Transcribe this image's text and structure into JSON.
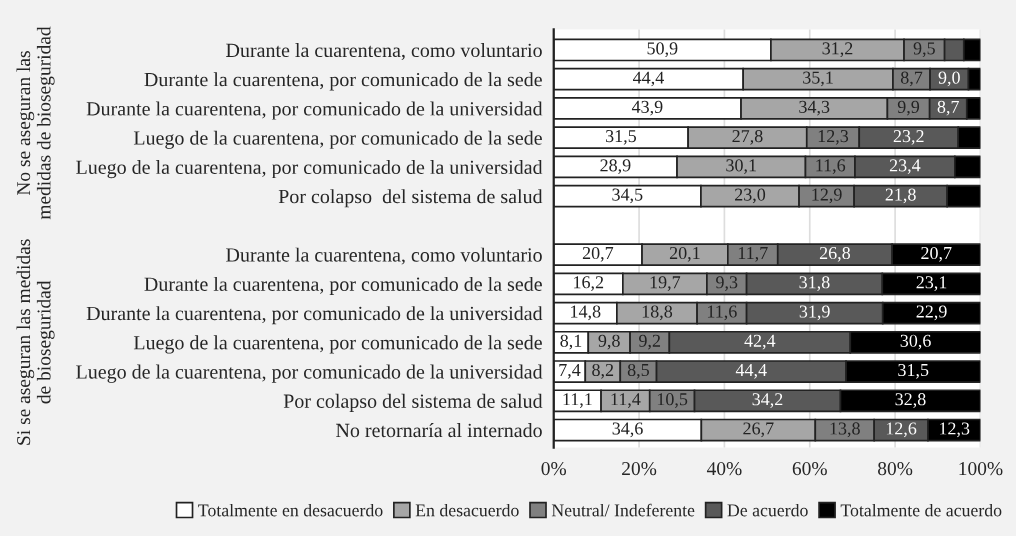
{
  "chart_data": {
    "type": "bar",
    "orientation": "horizontal",
    "stacked": true,
    "categories": [
      "Durante la cuarentena, como voluntario",
      "Durante la cuarentena, por comunicado de la sede",
      "Durante la cuarentena, por comunicado de la universidad",
      "Luego de la cuarentena, por comunicado de la sede",
      "Luego de la cuarentena, por comunicado de la universidad",
      "Por colapso  del sistema de salud",
      null,
      "Durante la cuarentena, como voluntario",
      "Durante la cuarentena, por comunicado de la sede",
      "Durante la cuarentena, por comunicado de la universidad",
      "Luego de la cuarentena, por comunicado de la sede",
      "Luego de la cuarentena, por comunicado de la universidad",
      "Por colapso del sistema de salud",
      "No retornaría al internado"
    ],
    "series": [
      {
        "name": "Totalmente en desacuerdo",
        "color": "#ffffff",
        "values": [
          50.9,
          44.4,
          43.9,
          31.5,
          28.9,
          34.5,
          null,
          20.7,
          16.2,
          14.8,
          8.1,
          7.4,
          11.1,
          34.6
        ],
        "value_labels": [
          "50,9",
          "44,4",
          "43,9",
          "31,5",
          "28,9",
          "34,5",
          null,
          "20,7",
          "16,2",
          "14,8",
          "8,1",
          "7,4",
          "11,1",
          "34,6"
        ]
      },
      {
        "name": "En desacuerdo",
        "color": "#a6a6a6",
        "values": [
          31.2,
          35.1,
          34.3,
          27.8,
          30.1,
          23.0,
          null,
          20.1,
          19.7,
          18.8,
          9.8,
          8.2,
          11.4,
          26.7
        ],
        "value_labels": [
          "31,2",
          "35,1",
          "34,3",
          "27,8",
          "30,1",
          "23,0",
          null,
          "20,1",
          "19,7",
          "18,8",
          "9,8",
          "8,2",
          "11,4",
          "26,7"
        ]
      },
      {
        "name": "Neutral/ Indeferente",
        "color": "#808080",
        "values": [
          9.5,
          8.7,
          9.9,
          12.3,
          11.6,
          12.9,
          null,
          11.7,
          9.3,
          11.6,
          9.2,
          8.5,
          10.5,
          13.8
        ],
        "value_labels": [
          "9,5",
          "8,7",
          "9,9",
          "12,3",
          "11,6",
          "12,9",
          null,
          "11,7",
          "9,3",
          "11,6",
          "9,2",
          "8,5",
          "10,5",
          "13,8"
        ]
      },
      {
        "name": "De acuerdo",
        "color": "#595959",
        "values": [
          4.5,
          9.0,
          8.7,
          23.2,
          23.4,
          21.8,
          null,
          26.8,
          31.8,
          31.9,
          42.4,
          44.4,
          34.2,
          12.6
        ],
        "value_labels": [
          null,
          "9,0",
          "8,7",
          "23,2",
          "23,4",
          "21,8",
          null,
          "26,8",
          "31,8",
          "31,9",
          "42,4",
          "44,4",
          "34,2",
          "12,6"
        ]
      },
      {
        "name": "Totalmente de acuerdo",
        "color": "#000000",
        "values": [
          3.9,
          2.8,
          3.2,
          5.2,
          6.0,
          7.8,
          null,
          20.7,
          23.1,
          22.9,
          30.6,
          31.5,
          32.8,
          12.3
        ],
        "value_labels": [
          null,
          null,
          null,
          null,
          null,
          null,
          null,
          "20,7",
          "23,1",
          "22,9",
          "30,6",
          "31,5",
          "32,8",
          "12,3"
        ]
      }
    ],
    "xlim": [
      0,
      100
    ],
    "xticks": [
      {
        "value": 0,
        "label": "0%"
      },
      {
        "value": 20,
        "label": "20%"
      },
      {
        "value": 40,
        "label": "40%"
      },
      {
        "value": 60,
        "label": "60%"
      },
      {
        "value": 80,
        "label": "80%"
      },
      {
        "value": 100,
        "label": "100%"
      }
    ],
    "grid": "x",
    "legend": "bottom",
    "annotations": [
      "No se aseguran las\nmedidas de bioseguridad",
      "Si se aseguran las medidas\nde bioseguridad"
    ]
  }
}
